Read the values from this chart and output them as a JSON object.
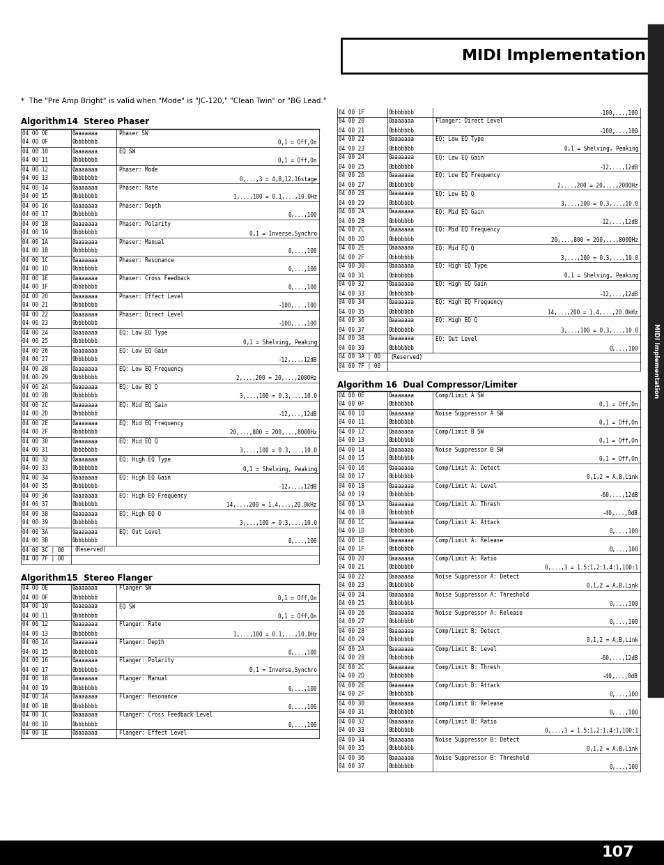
{
  "page_number": "107",
  "header_title": "MIDI Implementation",
  "note_text": "*  The \"Pre Amp Bright\" is valid when \"Mode\" is \"JC-120,\" \"Clean Twin\" or \"BG Lead.\"",
  "bg": "#ffffff",
  "section1_title": "Algorithm14  Stereo Phaser",
  "section2_title": "Algorithm15  Stereo Flanger",
  "section3_title": "Algorithm 16  Dual Compressor/Limiter",
  "phaser_rows": [
    [
      "04 00 0E",
      "0aaaaaaa",
      "Phaser SW",
      ""
    ],
    [
      "04 00 0F#",
      "0bbbbbbb",
      "",
      "0,1 = Off,On"
    ],
    [
      "04 00 10",
      "0aaaaaaa",
      "EQ SW",
      ""
    ],
    [
      "04 00 11#",
      "0bbbbbbb",
      "",
      "0,1 = Off,On"
    ],
    [
      "04 00 12",
      "0aaaaaaa",
      "Phaser: Mode",
      ""
    ],
    [
      "04 00 13#",
      "0bbbbbbb",
      "",
      "0,...,3 = 4,8,12,16stage"
    ],
    [
      "04 00 14",
      "0aaaaaaa",
      "Phaser: Rate",
      ""
    ],
    [
      "04 00 15#",
      "0bbbbbbb",
      "",
      "1,...,100 = 0.1,...,10.0Hz"
    ],
    [
      "04 00 16",
      "0aaaaaaa",
      "Phaser: Depth",
      ""
    ],
    [
      "04 00 17#",
      "0bbbbbbb",
      "",
      "0,...,100"
    ],
    [
      "04 00 18",
      "0aaaaaaa",
      "Phaser: Polarity",
      ""
    ],
    [
      "04 00 19#",
      "0bbbbbbb",
      "",
      "0,1 = Inverse,Synchro"
    ],
    [
      "04 00 1A",
      "0aaaaaaa",
      "Phaser: Manual",
      ""
    ],
    [
      "04 00 1B#",
      "0bbbbbbb",
      "",
      "0,...,100"
    ],
    [
      "04 00 1C",
      "0aaaaaaa",
      "Phaser: Resonance",
      ""
    ],
    [
      "04 00 1D#",
      "0bbbbbbb",
      "",
      "0,...,100"
    ],
    [
      "04 00 1E",
      "0aaaaaaa",
      "Phaser: Cross Feedback",
      ""
    ],
    [
      "04 00 1F#",
      "0bbbbbbb",
      "",
      "0,...,100"
    ],
    [
      "04 00 20",
      "0aaaaaaa",
      "Phaser: Effect Level",
      ""
    ],
    [
      "04 00 21#",
      "0bbbbbbb",
      "",
      "-100,...,100"
    ],
    [
      "04 00 22",
      "0aaaaaaa",
      "Phaser: Direct Level",
      ""
    ],
    [
      "04 00 23#",
      "0bbbbbbb",
      "",
      "-100,...,100"
    ],
    [
      "04 00 24",
      "0aaaaaaa",
      "EQ: Low EQ Type",
      ""
    ],
    [
      "04 00 25#",
      "0bbbbbbb",
      "",
      "0,1 = Shelving, Peaking"
    ],
    [
      "04 00 26",
      "0aaaaaaa",
      "EQ: Low EQ Gain",
      ""
    ],
    [
      "04 00 27#",
      "0bbbbbbb",
      "",
      "-12,...,12dB"
    ],
    [
      "04 00 28",
      "0aaaaaaa",
      "EQ: Low EQ Frequency",
      ""
    ],
    [
      "04 00 29#",
      "0bbbbbbb",
      "",
      "2,...,200 = 20,...,2000Hz"
    ],
    [
      "04 00 2A",
      "0aaaaaaa",
      "EQ: Low EQ Q",
      ""
    ],
    [
      "04 00 2B#",
      "0bbbbbbb",
      "",
      "3,...,100 = 0.3,...,10.0"
    ],
    [
      "04 00 2C",
      "0aaaaaaa",
      "EQ: Mid EQ Gain",
      ""
    ],
    [
      "04 00 2D#",
      "0bbbbbbb",
      "",
      "-12,...,12dB"
    ],
    [
      "04 00 2E",
      "0aaaaaaa",
      "EQ: Mid EQ Frequency",
      ""
    ],
    [
      "04 00 2F#",
      "0bbbbbbb",
      "",
      "20,...,800 = 200,...,8000Hz"
    ],
    [
      "04 00 30",
      "0aaaaaaa",
      "EQ: Mid EQ Q",
      ""
    ],
    [
      "04 00 31#",
      "0bbbbbbb",
      "",
      "3,...,100 = 0.3,...,10.0"
    ],
    [
      "04 00 32",
      "0aaaaaaa",
      "EQ: High EQ Type",
      ""
    ],
    [
      "04 00 33#",
      "0bbbbbbb",
      "",
      "0,1 = Shelving, Peaking"
    ],
    [
      "04 00 34",
      "0aaaaaaa",
      "EQ: High EQ Gain",
      ""
    ],
    [
      "04 00 35#",
      "0bbbbbbb",
      "",
      "-12,...,12dB"
    ],
    [
      "04 00 36",
      "0aaaaaaa",
      "EQ: High EQ Frequency",
      ""
    ],
    [
      "04 00 37#",
      "0bbbbbbb",
      "",
      "14,...,200 = 1.4,...,20.0kHz"
    ],
    [
      "04 00 38",
      "0aaaaaaa",
      "EQ: High EQ Q",
      ""
    ],
    [
      "04 00 39#",
      "0bbbbbbb",
      "",
      "3,...,100 = 0.3,...,10.0"
    ],
    [
      "04 00 3A",
      "0aaaaaaa",
      "EQ: Out Level",
      ""
    ],
    [
      "04 00 3B#",
      "0bbbbbbb",
      "",
      "0,...,100"
    ],
    [
      "04 00 3C | 00",
      "",
      "(Reserved)",
      ""
    ],
    [
      "04 00 7F | 00",
      "",
      "",
      ""
    ]
  ],
  "flanger_rows": [
    [
      "04 00 0E",
      "0aaaaaaa",
      "Flanger SW",
      ""
    ],
    [
      "04 00 0F#",
      "0bbbbbbb",
      "",
      "0,1 = Off,On"
    ],
    [
      "04 00 10",
      "0aaaaaaa",
      "EQ SW",
      ""
    ],
    [
      "04 00 11#",
      "0bbbbbbb",
      "",
      "0,1 = Off,On"
    ],
    [
      "04 00 12",
      "0aaaaaaa",
      "Flanger: Rate",
      ""
    ],
    [
      "04 00 13#",
      "0bbbbbbb",
      "",
      "1,...,100 = 0.1,...,10.0Hz"
    ],
    [
      "04 00 14",
      "0aaaaaaa",
      "Flanger: Depth",
      ""
    ],
    [
      "04 00 15#",
      "0bbbbbbb",
      "",
      "0,...,100"
    ],
    [
      "04 00 16",
      "0aaaaaaa",
      "Flanger: Polarity",
      ""
    ],
    [
      "04 00 17#",
      "0bbbbbbb",
      "",
      "0,1 = Inverse,Synchro"
    ],
    [
      "04 00 18",
      "0aaaaaaa",
      "Flanger: Manual",
      ""
    ],
    [
      "04 00 19#",
      "0bbbbbbb",
      "",
      "0,...,100"
    ],
    [
      "04 00 1A",
      "0aaaaaaa",
      "Flanger: Resonance",
      ""
    ],
    [
      "04 00 1B#",
      "0bbbbbbb",
      "",
      "0,...,100"
    ],
    [
      "04 00 1C",
      "0aaaaaaa",
      "Flanger: Cross Feedback Level",
      ""
    ],
    [
      "04 00 1D#",
      "0bbbbbbb",
      "",
      "0,...,100"
    ],
    [
      "04 00 1E",
      "0aaaaaaa",
      "Flanger: Effect Level",
      ""
    ]
  ],
  "right_top_rows": [
    [
      "04 00 1F#",
      "0bbbbbbb",
      "",
      "-100,...,100"
    ],
    [
      "04 00 20",
      "0aaaaaaa",
      "Flanger: Direct Level",
      ""
    ],
    [
      "04 00 21#",
      "0bbbbbbb",
      "",
      "-100,...,100"
    ],
    [
      "04 00 22",
      "0aaaaaaa",
      "EQ: Low EQ Type",
      ""
    ],
    [
      "04 00 23#",
      "0bbbbbbb",
      "",
      "0,1 = Shelving, Peaking"
    ],
    [
      "04 00 24",
      "0aaaaaaa",
      "EQ: Low EQ Gain",
      ""
    ],
    [
      "04 00 25#",
      "0bbbbbbb",
      "",
      "-12,...,12dB"
    ],
    [
      "04 00 26",
      "0aaaaaaa",
      "EQ: Low EQ Frequency",
      ""
    ],
    [
      "04 00 27#",
      "0bbbbbbb",
      "",
      "2,...,200 = 20,...,2000Hz"
    ],
    [
      "04 00 28",
      "0aaaaaaa",
      "EQ: Low EQ Q",
      ""
    ],
    [
      "04 00 29#",
      "0bbbbbbb",
      "",
      "3,...,100 = 0.3,...,10.0"
    ],
    [
      "04 00 2A",
      "0aaaaaaa",
      "EQ: Mid EQ Gain",
      ""
    ],
    [
      "04 00 2B#",
      "0bbbbbbb",
      "",
      "-12,...,12dB"
    ],
    [
      "04 00 2C",
      "0aaaaaaa",
      "EQ: Mid EQ Frequency",
      ""
    ],
    [
      "04 00 2D#",
      "0bbbbbbb",
      "",
      "20,...,800 = 200,...,8000Hz"
    ],
    [
      "04 00 2E",
      "0aaaaaaa",
      "EQ: Mid EQ Q",
      ""
    ],
    [
      "04 00 2F#",
      "0bbbbbbb",
      "",
      "3,...,100 = 0.3,...,10.0"
    ],
    [
      "04 00 30",
      "0aaaaaaa",
      "EQ: High EQ Type",
      ""
    ],
    [
      "04 00 31#",
      "0bbbbbbb",
      "",
      "0,1 = Shelving, Peaking"
    ],
    [
      "04 00 32",
      "0aaaaaaa",
      "EQ: High EQ Gain",
      ""
    ],
    [
      "04 00 33#",
      "0bbbbbbb",
      "",
      "-12,...,12dB"
    ],
    [
      "04 00 34",
      "0aaaaaaa",
      "EQ: High EQ Frequency",
      ""
    ],
    [
      "04 00 35#",
      "0bbbbbbb",
      "",
      "14,...,200 = 1.4,...,20.0kHz"
    ],
    [
      "04 00 36",
      "0aaaaaaa",
      "EQ: High EQ Q",
      ""
    ],
    [
      "04 00 37#",
      "0bbbbbbb",
      "",
      "3,...,100 = 0.3,...,10.0"
    ],
    [
      "04 00 38",
      "0aaaaaaa",
      "EQ: Out Level",
      ""
    ],
    [
      "04 00 39#",
      "0bbbbbbb",
      "",
      "0,...,100"
    ],
    [
      "04 00 3A | 00",
      "",
      "(Reserved)",
      ""
    ],
    [
      "04 00 7F | 00",
      "",
      "",
      ""
    ]
  ],
  "compressor_rows": [
    [
      "04 00 0E",
      "0aaaaaaa",
      "Comp/Limit A SW",
      ""
    ],
    [
      "04 00 0F#",
      "0bbbbbbb",
      "",
      "0,1 = Off,On"
    ],
    [
      "04 00 10",
      "0aaaaaaa",
      "Noise Suppressor A SW",
      ""
    ],
    [
      "04 00 11#",
      "0bbbbbbb",
      "",
      "0,1 = Off,On"
    ],
    [
      "04 00 12",
      "0aaaaaaa",
      "Comp/Limit B SW",
      ""
    ],
    [
      "04 00 13#",
      "0bbbbbbb",
      "",
      "0,1 = Off,On"
    ],
    [
      "04 00 14",
      "0aaaaaaa",
      "Noise Suppressor B SW",
      ""
    ],
    [
      "04 00 15#",
      "0bbbbbbb",
      "",
      "0,1 = Off,On"
    ],
    [
      "04 00 16",
      "0aaaaaaa",
      "Comp/Limit A: Detect",
      ""
    ],
    [
      "04 00 17#",
      "0bbbbbbb",
      "",
      "0,1,2 = A,B,Link"
    ],
    [
      "04 00 18",
      "0aaaaaaa",
      "Comp/Limit A: Level",
      ""
    ],
    [
      "04 00 19#",
      "0bbbbbbb",
      "",
      "-60,...,12dB"
    ],
    [
      "04 00 1A",
      "0aaaaaaa",
      "Comp/Limit A: Thresh",
      ""
    ],
    [
      "04 00 1B#",
      "0bbbbbbb",
      "",
      "-40,...,0dB"
    ],
    [
      "04 00 1C",
      "0aaaaaaa",
      "Comp/Limit A: Attack",
      ""
    ],
    [
      "04 00 1D#",
      "0bbbbbbb",
      "",
      "0,...,100"
    ],
    [
      "04 00 1E",
      "0aaaaaaa",
      "Comp/Limit A: Release",
      ""
    ],
    [
      "04 00 1F#",
      "0bbbbbbb",
      "",
      "0,...,100"
    ],
    [
      "04 00 20",
      "0aaaaaaa",
      "Comp/Limit A: Ratio",
      ""
    ],
    [
      "04 00 21#",
      "0bbbbbbb",
      "",
      "0,...,3 = 1.5:1,2:1,4:1,100:1"
    ],
    [
      "04 00 22",
      "0aaaaaaa",
      "Noise Suppressor A: Detect",
      ""
    ],
    [
      "04 00 23#",
      "0bbbbbbb",
      "",
      "0,1,2 = A,B,Link"
    ],
    [
      "04 00 24",
      "0aaaaaaa",
      "Noise Suppressor A: Threshold",
      ""
    ],
    [
      "04 00 25#",
      "0bbbbbbb",
      "",
      "0,...,100"
    ],
    [
      "04 00 26",
      "0aaaaaaa",
      "Noise Suppressor A: Release",
      ""
    ],
    [
      "04 00 27#",
      "0bbbbbbb",
      "",
      "0,...,100"
    ],
    [
      "04 00 28",
      "0aaaaaaa",
      "Comp/Limit B: Detect",
      ""
    ],
    [
      "04 00 29#",
      "0bbbbbbb",
      "",
      "0,1,2 = A,B,Link"
    ],
    [
      "04 00 2A",
      "0aaaaaaa",
      "Comp/Limit B: Level",
      ""
    ],
    [
      "04 00 2B#",
      "0bbbbbbb",
      "",
      "-60,...,12dB"
    ],
    [
      "04 00 2C",
      "0aaaaaaa",
      "Comp/Limit B: Thresh",
      ""
    ],
    [
      "04 00 2D#",
      "0bbbbbbb",
      "",
      "-40,...,0dB"
    ],
    [
      "04 00 2E",
      "0aaaaaaa",
      "Comp/Limit B: Attack",
      ""
    ],
    [
      "04 00 2F#",
      "0bbbbbbb",
      "",
      "0,...,100"
    ],
    [
      "04 00 30",
      "0aaaaaaa",
      "Comp/Limit B: Release",
      ""
    ],
    [
      "04 00 31#",
      "0bbbbbbb",
      "",
      "0,...,100"
    ],
    [
      "04 00 32",
      "0aaaaaaa",
      "Comp/Limit B: Ratio",
      ""
    ],
    [
      "04 00 33#",
      "0bbbbbbb",
      "",
      "0,...,3 = 1.5:1,2:1,4:1,100:1"
    ],
    [
      "04 00 34",
      "0aaaaaaa",
      "Noise Suppressor B: Detect",
      ""
    ],
    [
      "04 00 35#",
      "0bbbbbbb",
      "",
      "0,1,2 = A,B,Link"
    ],
    [
      "04 00 36",
      "0aaaaaaa",
      "Noise Suppressor B: Threshold",
      ""
    ],
    [
      "04 00 37#",
      "0bbbbbbb",
      "",
      "0,...,100"
    ]
  ]
}
